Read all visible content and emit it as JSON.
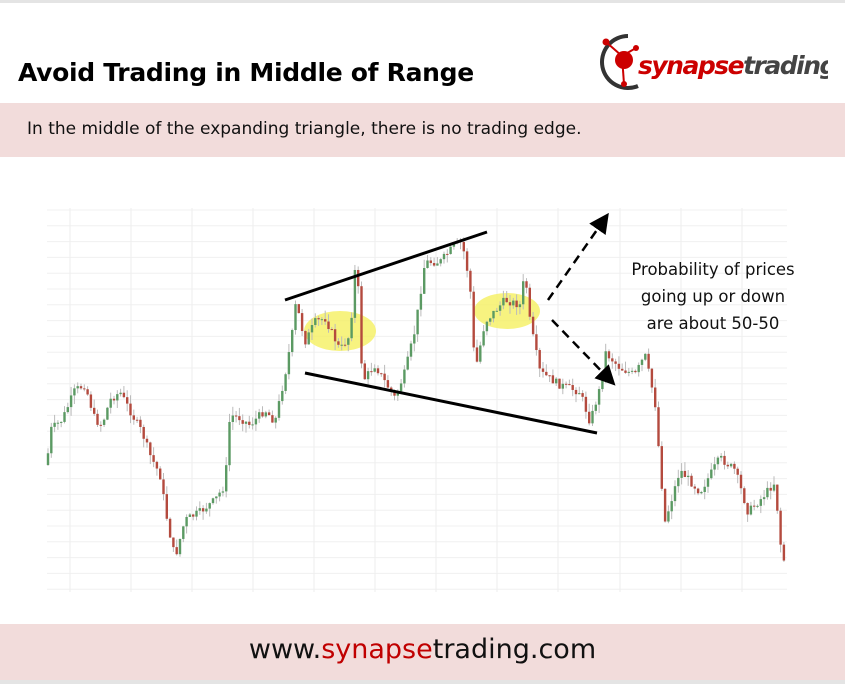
{
  "slide": {
    "title": "Avoid Trading in Middle of Range",
    "subtitle": "In the middle of the expanding triangle, there is no trading edge.",
    "annotation": [
      "Probability of prices",
      "going up or down",
      "are about 50-50"
    ],
    "footer_url": {
      "prefix": "www.",
      "highlight": "synapse",
      "suffix": "trading.com"
    },
    "logo_text": "synapsetrading"
  },
  "colors": {
    "band": "#f2dcdb",
    "brand_red": "#c00000",
    "bull_candle": "#5b9a63",
    "bear_candle": "#b44a3e",
    "highlight": "#f5f060"
  }
}
